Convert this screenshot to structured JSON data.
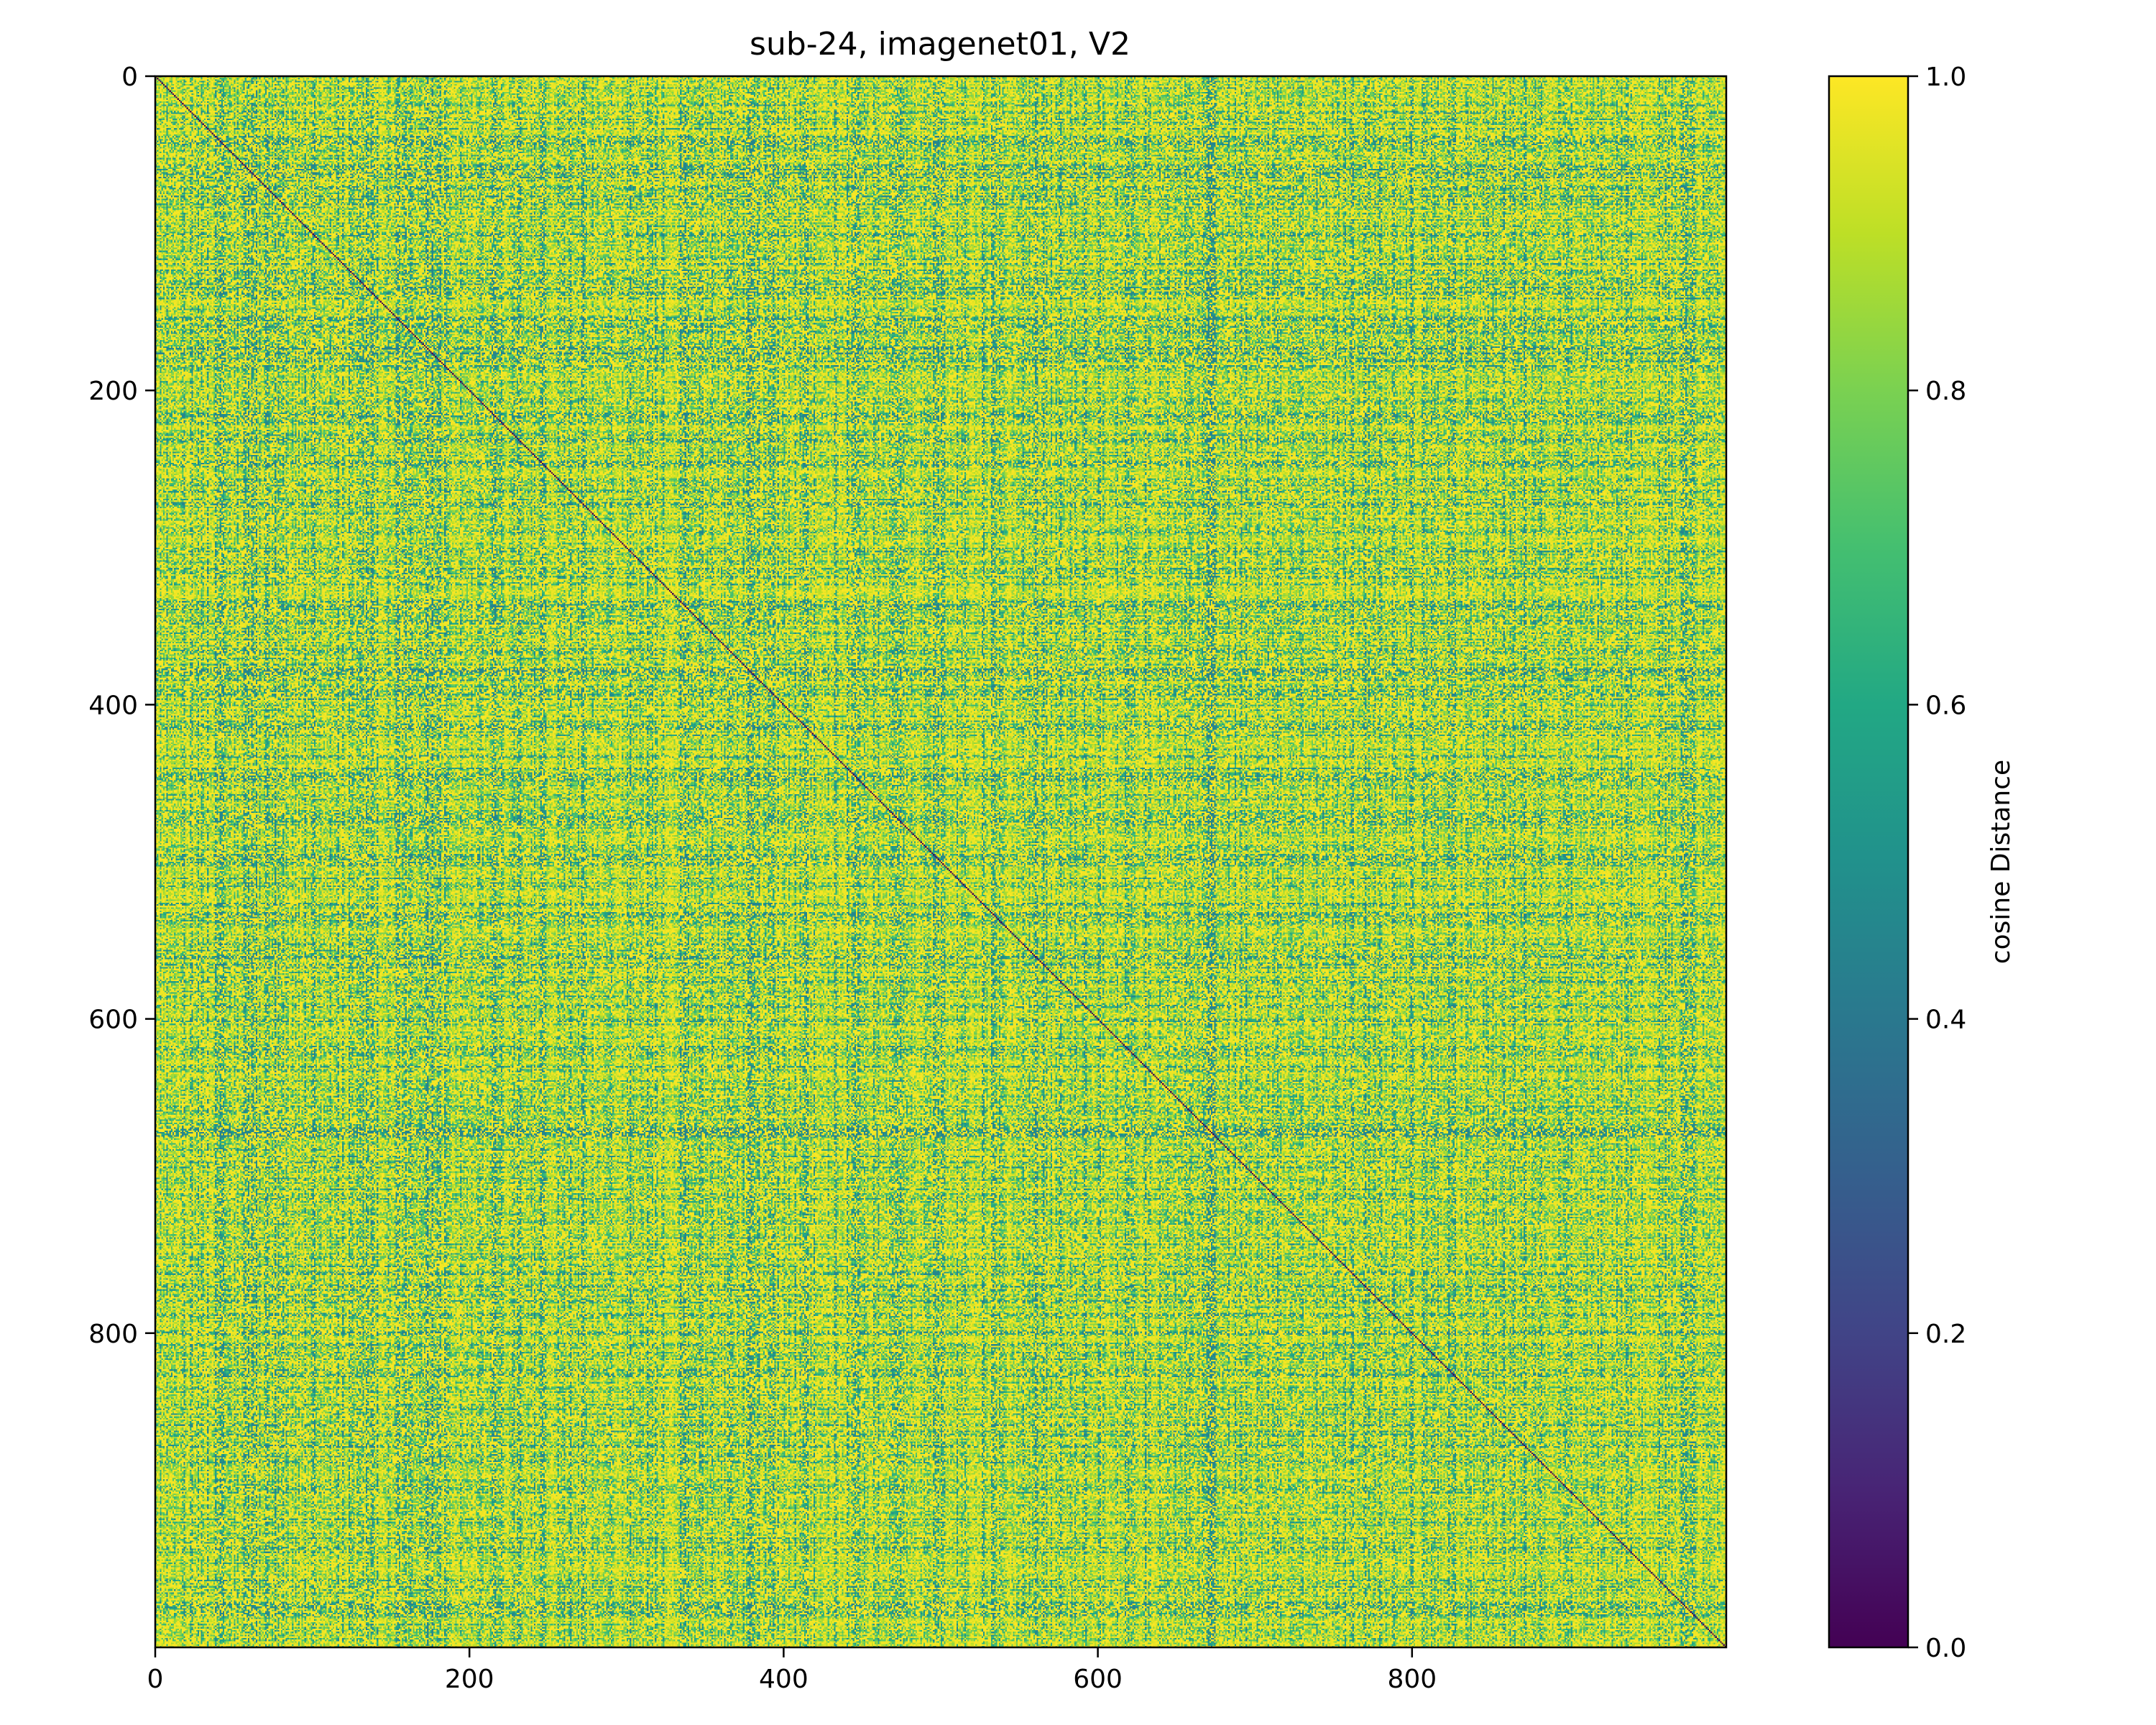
{
  "chart_data": {
    "type": "heatmap",
    "title": "sub-24, imagenet01, V2",
    "n": 1000,
    "xlim": [
      0,
      1000
    ],
    "ylim": [
      1000,
      0
    ],
    "x_ticks": [
      0,
      200,
      400,
      600,
      800
    ],
    "y_ticks": [
      0,
      200,
      400,
      600,
      800
    ],
    "x_tick_labels": [
      "0",
      "200",
      "400",
      "600",
      "800"
    ],
    "y_tick_labels": [
      "0",
      "200",
      "400",
      "600",
      "800"
    ],
    "colorbar": {
      "label": "cosine Distance",
      "range": [
        0.0,
        1.0
      ],
      "ticks": [
        0.0,
        0.2,
        0.4,
        0.6,
        0.8,
        1.0
      ],
      "tick_labels": [
        "0.0",
        "0.2",
        "0.4",
        "0.6",
        "0.8",
        "1.0"
      ],
      "colormap": "viridis"
    },
    "diagonal_value": 0.0,
    "typical_offdiagonal_range": [
      0.45,
      1.0
    ],
    "dark_bands": [
      60,
      75,
      165,
      175,
      215,
      230,
      305,
      380,
      450,
      460,
      560,
      670,
      680,
      860
    ]
  },
  "colors": {
    "viridis_stops": [
      "#440154",
      "#3b528b",
      "#21918c",
      "#5ec962",
      "#fde725"
    ]
  }
}
